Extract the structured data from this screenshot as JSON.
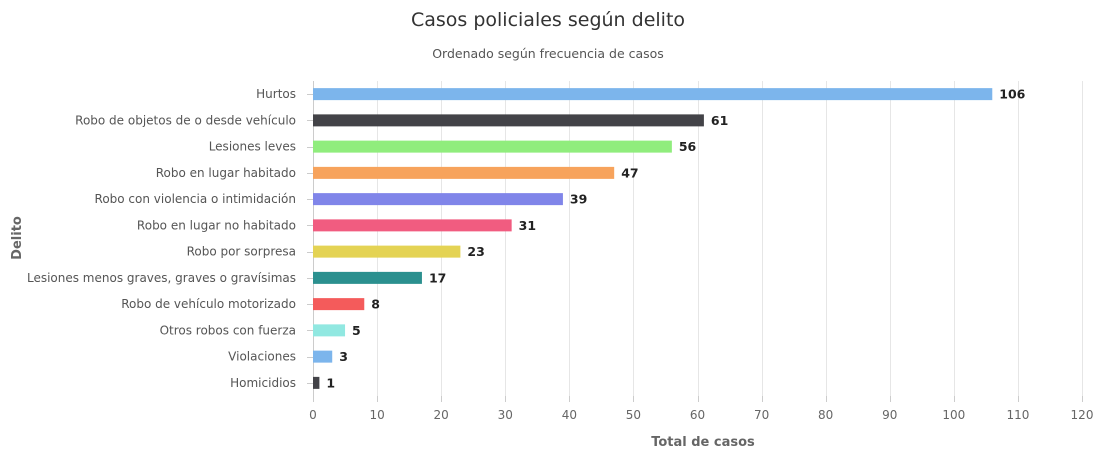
{
  "chart_data": {
    "type": "bar",
    "orientation": "horizontal",
    "title": "Casos policiales según delito",
    "subtitle": "Ordenado según frecuencia de casos",
    "xlabel": "Total de casos",
    "ylabel": "Delito",
    "xlim": [
      0,
      120
    ],
    "x_ticks": [
      0,
      10,
      20,
      30,
      40,
      50,
      60,
      70,
      80,
      90,
      100,
      110,
      120
    ],
    "grid": true,
    "legend": "none",
    "categories": [
      "Hurtos",
      "Robo de objetos de o desde vehículo",
      "Lesiones leves",
      "Robo en lugar habitado",
      "Robo con violencia o intimidación",
      "Robo en lugar no habitado",
      "Robo por sorpresa",
      "Lesiones menos graves, graves o gravísimas",
      "Robo de vehículo motorizado",
      "Otros robos con fuerza",
      "Violaciones",
      "Homicidios"
    ],
    "values": [
      106,
      61,
      56,
      47,
      39,
      31,
      23,
      17,
      8,
      5,
      3,
      1
    ],
    "colors": [
      "#7cb5ec",
      "#434348",
      "#90ed7d",
      "#f7a35c",
      "#8085e9",
      "#f15c80",
      "#e4d354",
      "#2b908f",
      "#f45b5b",
      "#91e8e1",
      "#7cb5ec",
      "#434348"
    ]
  }
}
